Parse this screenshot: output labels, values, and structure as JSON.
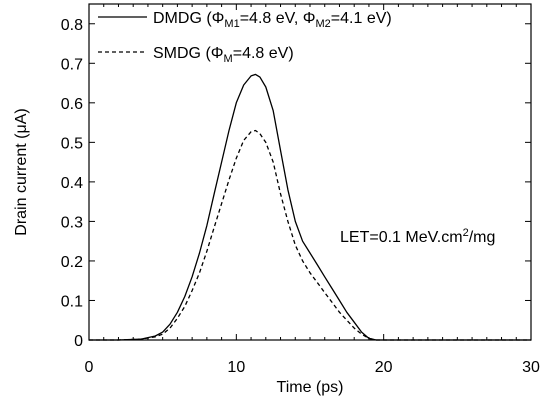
{
  "chart_data": {
    "type": "line",
    "xlabel": "Time (ps)",
    "ylabel": "Drain current (μA)",
    "xlim": [
      0,
      30
    ],
    "ylim": [
      0,
      0.85
    ],
    "xticks": [
      "0",
      "10",
      "20",
      "30"
    ],
    "yticks": [
      "0",
      "0.1",
      "0.2",
      "0.3",
      "0.4",
      "0.5",
      "0.6",
      "0.7",
      "0.8"
    ],
    "grid": false,
    "legend_position": "top-left",
    "annotation": {
      "text": "LET=0.1 MeV.cm",
      "sup": "2",
      "tail": "/mg"
    },
    "series": [
      {
        "name": "DMDG",
        "line_style": "solid",
        "legend": {
          "open": "DMDG (",
          "phi1": "Φ",
          "sub1": "M1",
          "val1": "=4.8 eV, ",
          "phi2": "Φ",
          "sub2": "M2",
          "val2": "=4.1 eV)"
        },
        "x": [
          0,
          2,
          3.5,
          4.5,
          5,
          5.5,
          6,
          6.5,
          7,
          7.5,
          8,
          8.5,
          9,
          9.5,
          10,
          10.5,
          11,
          11.3,
          11.6,
          12,
          12.5,
          13,
          13.5,
          14,
          14.5,
          15,
          15.5,
          16,
          16.5,
          17,
          17.5,
          18,
          18.5,
          19,
          19.5,
          20,
          25,
          30
        ],
        "y": [
          0,
          0,
          0.002,
          0.01,
          0.02,
          0.04,
          0.07,
          0.11,
          0.16,
          0.22,
          0.29,
          0.37,
          0.45,
          0.53,
          0.6,
          0.645,
          0.668,
          0.672,
          0.665,
          0.64,
          0.58,
          0.48,
          0.38,
          0.3,
          0.25,
          0.22,
          0.19,
          0.16,
          0.13,
          0.1,
          0.07,
          0.045,
          0.02,
          0.004,
          0,
          0,
          0,
          0
        ]
      },
      {
        "name": "SMDG",
        "line_style": "dashed",
        "legend": {
          "open": "SMDG (",
          "phi1": "Φ",
          "sub1": "M",
          "val1": "=4.8 eV)"
        },
        "x": [
          0,
          2,
          3.5,
          4.5,
          5,
          5.5,
          6,
          6.5,
          7,
          7.5,
          8,
          8.5,
          9,
          9.5,
          10,
          10.5,
          11,
          11.3,
          11.6,
          12,
          12.5,
          13,
          13.5,
          14,
          14.5,
          15,
          15.5,
          16,
          16.5,
          17,
          17.5,
          18,
          18.5,
          19,
          19.5,
          20,
          25,
          30
        ],
        "y": [
          0,
          0,
          0.002,
          0.008,
          0.015,
          0.03,
          0.055,
          0.085,
          0.125,
          0.17,
          0.225,
          0.285,
          0.345,
          0.405,
          0.46,
          0.505,
          0.527,
          0.53,
          0.522,
          0.5,
          0.45,
          0.37,
          0.3,
          0.24,
          0.2,
          0.17,
          0.145,
          0.12,
          0.095,
          0.07,
          0.05,
          0.03,
          0.015,
          0.004,
          0,
          0,
          0,
          0
        ]
      }
    ]
  }
}
